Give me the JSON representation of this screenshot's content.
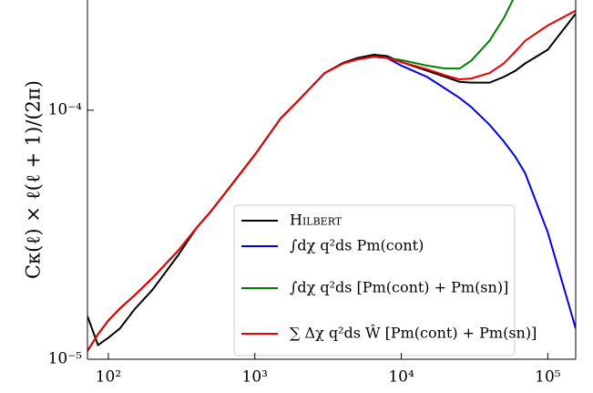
{
  "chart_data": {
    "type": "line",
    "y_label": "Cκ(ℓ) × ℓ(ℓ + 1)/(2π)",
    "log_x": true,
    "log_y": true,
    "legend": "lower right",
    "x": [
      72,
      85,
      100,
      120,
      150,
      200,
      300,
      400,
      500,
      700,
      1000,
      1500,
      2000,
      3000,
      4000,
      5000,
      6500,
      8000,
      10000,
      15000,
      20000,
      25000,
      30000,
      40000,
      50000,
      60000,
      70000,
      100000,
      155000
    ],
    "xlim": [
      72,
      155000
    ],
    "ylim": [
      1e-05,
      0.000277
    ],
    "xticks": [
      {
        "value": 100,
        "label": "10²"
      },
      {
        "value": 1000,
        "label": "10³"
      },
      {
        "value": 10000,
        "label": "10⁴"
      },
      {
        "value": 100000,
        "label": "10⁵"
      }
    ],
    "yticks": [
      {
        "value": 1e-05,
        "label": "10⁻⁵"
      },
      {
        "value": 0.0001,
        "label": "10⁻⁴"
      }
    ],
    "series": [
      {
        "name": "Hilbert",
        "color": "#000000",
        "values": [
          1.49e-05,
          1.14e-05,
          1.22e-05,
          1.33e-05,
          1.58e-05,
          1.9e-05,
          2.62e-05,
          3.37e-05,
          3.92e-05,
          5.05e-05,
          6.62e-05,
          9.27e-05,
          0.00011,
          0.000141,
          0.000155,
          0.000162,
          0.000167,
          0.000165,
          0.000156,
          0.000144,
          0.000136,
          0.00013,
          0.000129,
          0.000129,
          0.000136,
          0.000144,
          0.000154,
          0.000175,
          0.000244
        ]
      },
      {
        "name": "∫dχ q²ds Pm(cont)",
        "color": "#0000ee",
        "values": [
          1.08e-05,
          1.26e-05,
          1.43e-05,
          1.6e-05,
          1.8e-05,
          2.12e-05,
          2.73e-05,
          3.37e-05,
          3.92e-05,
          5.05e-05,
          6.62e-05,
          9.27e-05,
          0.00011,
          0.000141,
          0.000154,
          0.00016,
          0.000164,
          0.000162,
          0.000151,
          0.000136,
          0.000122,
          0.000112,
          0.000103,
          8.74e-05,
          7.5e-05,
          6.5e-05,
          5.59e-05,
          3.23e-05,
          1.33e-05
        ]
      },
      {
        "name": "∫dχ q²ds [Pm(cont) + Pm(sn)]",
        "color": "#008000",
        "values": [
          1.08e-05,
          1.26e-05,
          1.43e-05,
          1.6e-05,
          1.8e-05,
          2.12e-05,
          2.73e-05,
          3.37e-05,
          3.92e-05,
          5.05e-05,
          6.62e-05,
          9.27e-05,
          0.00011,
          0.000141,
          0.000154,
          0.00016,
          0.000164,
          0.000162,
          0.000159,
          0.000151,
          0.000147,
          0.000147,
          0.000158,
          0.00019,
          0.000234,
          0.00029,
          null,
          null,
          null
        ]
      },
      {
        "name": "∑ Δχ q²ds Ŵ [Pm(cont) + Pm(sn)]",
        "color": "#ee0000",
        "values": [
          1.08e-05,
          1.26e-05,
          1.43e-05,
          1.6e-05,
          1.8e-05,
          2.12e-05,
          2.73e-05,
          3.37e-05,
          3.92e-05,
          5.05e-05,
          6.62e-05,
          9.27e-05,
          0.00011,
          0.000141,
          0.000154,
          0.00016,
          0.000164,
          0.000162,
          0.000156,
          0.000146,
          0.000138,
          0.000133,
          0.000134,
          0.000141,
          0.000154,
          0.000172,
          0.00019,
          0.000219,
          0.000251
        ]
      }
    ]
  }
}
